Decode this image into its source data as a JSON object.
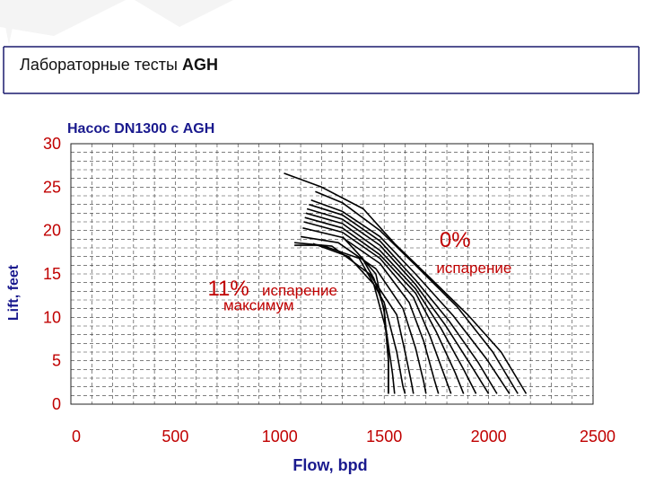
{
  "slide": {
    "title_main": "Лабораторные тесты ",
    "title_bold": "AGH"
  },
  "chart_data": {
    "type": "line",
    "title": "Насос DN1300 с AGH",
    "xlabel": "Flow, bpd",
    "ylabel": "Lift, feet",
    "xlim": [
      0,
      2500
    ],
    "ylim": [
      0,
      30
    ],
    "xticks": [
      "0",
      "500",
      "1000",
      "1500",
      "2000",
      "2500"
    ],
    "yticks": [
      "0",
      "5",
      "10",
      "15",
      "20",
      "25",
      "30"
    ],
    "grid": true,
    "annotations": [
      {
        "text": "0%",
        "x": 1765,
        "y": 18.1,
        "style": "big-red"
      },
      {
        "text": "испарение",
        "x": 1750,
        "y": 15.1,
        "style": "small-red"
      },
      {
        "text": "11%",
        "x": 655,
        "y": 12.5,
        "style": "big-red"
      },
      {
        "text": "испарение",
        "x": 915,
        "y": 12.5,
        "style": "small-red"
      },
      {
        "text": "максимум",
        "x": 730,
        "y": 10.8,
        "style": "small-red"
      }
    ],
    "series": [
      {
        "x": [
          1020,
          1200,
          1400,
          1550,
          1700,
          1900,
          2060,
          2180
        ],
        "y": [
          26.6,
          25.0,
          22.5,
          18.5,
          15.0,
          10.3,
          6.0,
          1.2
        ]
      },
      {
        "x": [
          1170,
          1300,
          1480,
          1650,
          1850,
          2020,
          2140
        ],
        "y": [
          24.5,
          23.2,
          20.0,
          16.0,
          11.2,
          6.0,
          1.2
        ]
      },
      {
        "x": [
          1150,
          1300,
          1480,
          1650,
          1830,
          1990,
          2100
        ],
        "y": [
          23.5,
          22.2,
          19.3,
          15.0,
          10.2,
          5.2,
          1.2
        ]
      },
      {
        "x": [
          1140,
          1300,
          1480,
          1650,
          1810,
          1950,
          2040
        ],
        "y": [
          23.0,
          21.8,
          18.8,
          14.3,
          9.6,
          4.8,
          1.2
        ]
      },
      {
        "x": [
          1130,
          1300,
          1480,
          1650,
          1790,
          1920,
          2000
        ],
        "y": [
          22.5,
          21.3,
          18.3,
          13.8,
          9.2,
          4.3,
          1.2
        ]
      },
      {
        "x": [
          1125,
          1300,
          1480,
          1650,
          1770,
          1880,
          1940
        ],
        "y": [
          22.0,
          20.8,
          17.7,
          13.3,
          8.8,
          4.0,
          1.2
        ]
      },
      {
        "x": [
          1120,
          1300,
          1480,
          1650,
          1750,
          1840,
          1880
        ],
        "y": [
          21.5,
          20.3,
          17.2,
          12.8,
          8.3,
          3.6,
          1.2
        ]
      },
      {
        "x": [
          1115,
          1300,
          1480,
          1640,
          1720,
          1790,
          1820
        ],
        "y": [
          21.0,
          19.8,
          16.8,
          12.3,
          7.8,
          3.2,
          1.2
        ]
      },
      {
        "x": [
          1110,
          1300,
          1480,
          1620,
          1690,
          1740,
          1760
        ],
        "y": [
          20.3,
          19.2,
          16.2,
          11.7,
          7.2,
          2.8,
          1.2
        ]
      },
      {
        "x": [
          1100,
          1280,
          1460,
          1590,
          1650,
          1690,
          1700
        ],
        "y": [
          19.3,
          18.6,
          15.6,
          11.0,
          6.5,
          2.5,
          1.2
        ]
      },
      {
        "x": [
          1070,
          1250,
          1430,
          1560,
          1600,
          1630,
          1640
        ],
        "y": [
          18.6,
          18.2,
          15.0,
          10.3,
          6.0,
          2.5,
          1.2
        ]
      },
      {
        "x": [
          1070,
          1200,
          1380,
          1500,
          1560,
          1590,
          1600
        ],
        "y": [
          18.3,
          18.3,
          16.8,
          11.7,
          6.0,
          2.0,
          1.2
        ]
      },
      {
        "x": [
          1160,
          1330,
          1450,
          1510,
          1540,
          1550
        ],
        "y": [
          18.5,
          17.0,
          13.8,
          8.5,
          3.5,
          1.2
        ]
      },
      {
        "x": [
          1390,
          1450,
          1500,
          1520,
          1520
        ],
        "y": [
          17.0,
          14.5,
          11.0,
          5.5,
          1.2
        ]
      },
      {
        "x": [
          1300,
          1380,
          1460,
          1500,
          1520,
          1520
        ],
        "y": [
          19.3,
          17.2,
          15.0,
          10.6,
          5.0,
          1.2
        ]
      }
    ]
  }
}
